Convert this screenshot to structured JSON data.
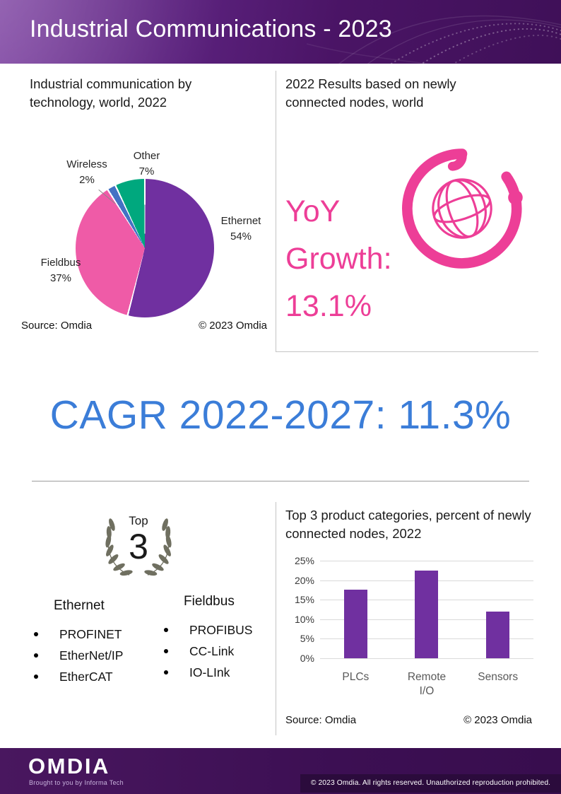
{
  "header": {
    "title": "Industrial Communications - 2023"
  },
  "top_left": {
    "heading": "Industrial communication by technology, world, 2022",
    "source": "Source: Omdia",
    "copyright": "© 2023 Omdia"
  },
  "top_right": {
    "heading": "2022 Results based on newly connected nodes, world",
    "yoy_line1": "YoY",
    "yoy_line2": "Growth:",
    "yoy_line3": "13.1%"
  },
  "cagr": {
    "text": "CAGR 2022-2027: 11.3%"
  },
  "bottom_left": {
    "badge_top": "Top",
    "badge_number": "3",
    "columns": [
      {
        "title": "Ethernet",
        "items": [
          "PROFINET",
          "EtherNet/IP",
          "EtherCAT"
        ]
      },
      {
        "title": "Fieldbus",
        "items": [
          "PROFIBUS",
          "CC-Link",
          "IO-LInk"
        ]
      }
    ]
  },
  "bottom_right": {
    "heading": "Top 3 product categories, percent of newly connected nodes, 2022",
    "source": "Source: Omdia",
    "copyright": "© 2023 Omdia"
  },
  "footer": {
    "logo": "OMDIA",
    "tagline": "Brought to you by Informa Tech",
    "copyright": "© 2023 Omdia. All rights reserved. Unauthorized reproduction prohibited."
  },
  "colors": {
    "accent_pink": "#ED3E97",
    "accent_blue": "#3B7DD8",
    "accent_purple": "#7030A0",
    "header_purple": "#4a1465"
  },
  "chart_data": [
    {
      "type": "pie",
      "title": "Industrial communication by technology, world, 2022",
      "slices": [
        {
          "label": "Ethernet",
          "value": 54,
          "pct": "54%",
          "color": "#7030A0"
        },
        {
          "label": "Fieldbus",
          "value": 37,
          "pct": "37%",
          "color": "#EF5BA7"
        },
        {
          "label": "Wireless",
          "value": 2,
          "pct": "2%",
          "color": "#4472C4"
        },
        {
          "label": "Other",
          "value": 7,
          "pct": "7%",
          "color": "#00A87E"
        }
      ],
      "source": "Source: Omdia",
      "copyright": "© 2023 Omdia"
    },
    {
      "type": "bar",
      "title": "Top 3 product categories, percent of newly connected nodes, 2022",
      "categories": [
        "PLCs",
        "Remote I/O",
        "Sensors"
      ],
      "values": [
        17.5,
        22.5,
        12
      ],
      "bar_color": "#7030A0",
      "ylim": [
        0,
        25
      ],
      "yticks": [
        "25%",
        "20%",
        "15%",
        "10%",
        "5%",
        "0%"
      ],
      "grid": true,
      "source": "Source: Omdia",
      "copyright": "© 2023 Omdia"
    }
  ]
}
